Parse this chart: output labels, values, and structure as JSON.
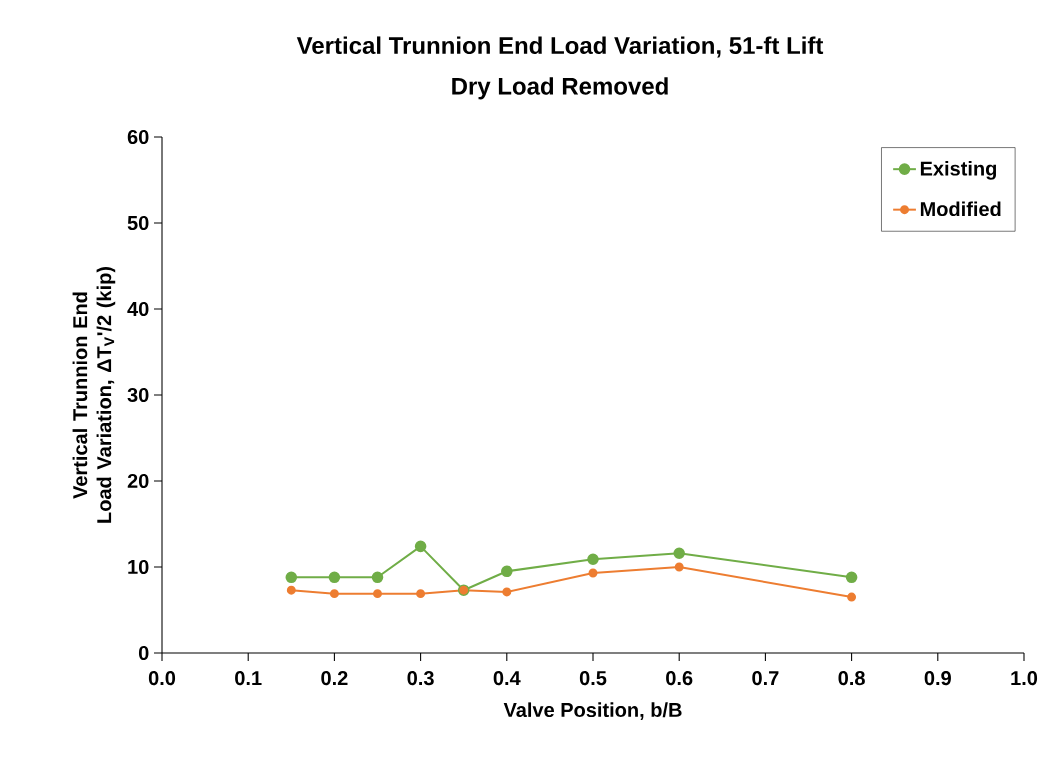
{
  "chart_data": {
    "type": "line",
    "title": "Vertical Trunnion End Load Variation, 51-ft Lift",
    "subtitle": "Dry Load Removed",
    "xlabel": "Valve Position, b/B",
    "ylabel": "Vertical Trunnion End Load Variation, ΔT$_{V}$'/2 (kip)",
    "x": [
      0.15,
      0.2,
      0.25,
      0.3,
      0.35,
      0.4,
      0.5,
      0.6,
      0.8
    ],
    "series": [
      {
        "name": "Existing",
        "color": "#70ad47",
        "values": [
          8.8,
          8.8,
          8.8,
          12.4,
          7.3,
          9.5,
          10.9,
          11.6,
          8.8
        ]
      },
      {
        "name": "Modified",
        "color": "#ed7d31",
        "values": [
          7.3,
          6.9,
          6.9,
          6.9,
          7.3,
          7.1,
          9.3,
          10.0,
          6.5
        ]
      }
    ],
    "xlim": [
      0,
      1
    ],
    "ylim": [
      0,
      60
    ],
    "xticks": [
      {
        "value": 0,
        "label": "0.0"
      },
      0.1,
      0.2,
      0.3,
      0.4,
      0.5,
      0.6,
      0.7,
      0.8,
      0.9,
      {
        "value": 1,
        "label": "1.0"
      }
    ],
    "yticks": [
      0,
      10,
      20,
      30,
      40,
      50,
      60
    ],
    "grid": false,
    "legend": "top right",
    "marker": "circle",
    "line_style": "solid"
  }
}
